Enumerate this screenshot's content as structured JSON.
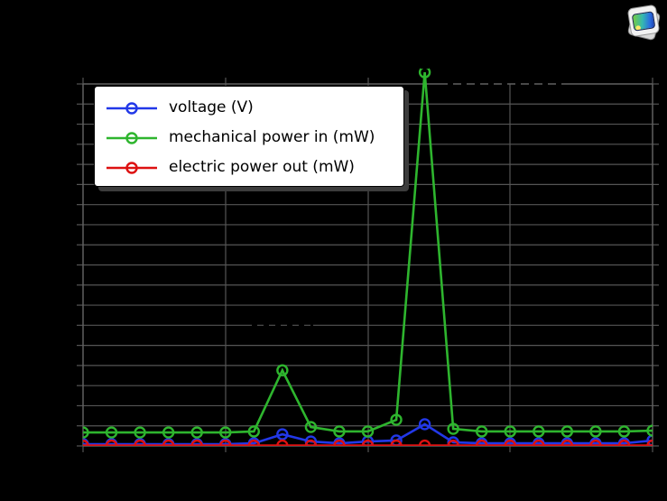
{
  "window": {
    "background": "#000000"
  },
  "app_icon": {
    "name": "image-viewer-app-icon"
  },
  "chart_data": {
    "type": "line",
    "title": "",
    "xlabel": "",
    "ylabel": "",
    "x": [
      0,
      1,
      2,
      3,
      4,
      5,
      6,
      7,
      8,
      9,
      10,
      11,
      12,
      13,
      14,
      15,
      16,
      17,
      18,
      19,
      20
    ],
    "x_tick_labels_visible": false,
    "y_tick_labels_visible": false,
    "y_axis_unit": "grid divisions (tick labels not legible in image)",
    "ylim_divisions": [
      0,
      18
    ],
    "series": [
      {
        "name": "voltage (V)",
        "color": "#2238e8",
        "marker": "open-circle",
        "values": [
          0.09,
          0.09,
          0.09,
          0.09,
          0.09,
          0.09,
          0.13,
          0.58,
          0.22,
          0.13,
          0.22,
          0.27,
          1.08,
          0.18,
          0.13,
          0.13,
          0.13,
          0.13,
          0.13,
          0.13,
          0.27
        ]
      },
      {
        "name": "mechanical power in (mW)",
        "color": "#2eb52e",
        "marker": "open-circle",
        "values": [
          0.67,
          0.67,
          0.67,
          0.67,
          0.67,
          0.67,
          0.72,
          3.76,
          0.94,
          0.72,
          0.72,
          1.3,
          18.58,
          0.85,
          0.72,
          0.72,
          0.72,
          0.72,
          0.72,
          0.72,
          0.76
        ]
      },
      {
        "name": "electric power out (mW)",
        "color": "#dd1111",
        "marker": "open-circle",
        "values": [
          0.02,
          0.02,
          0.02,
          0.02,
          0.02,
          0.02,
          0.02,
          0.02,
          0.02,
          0.02,
          0.02,
          0.02,
          0.02,
          0.02,
          0.02,
          0.02,
          0.02,
          0.02,
          0.02,
          0.02,
          0.02
        ]
      }
    ],
    "legend": {
      "position": "upper-left",
      "background": "#ffffff",
      "shadow": true
    },
    "axes": {
      "grid": true,
      "grid_color": "#555555",
      "frame_color": "#606060",
      "plot_background": "#000000",
      "x_gridline_count": 5,
      "y_gridline_count": 19
    }
  }
}
